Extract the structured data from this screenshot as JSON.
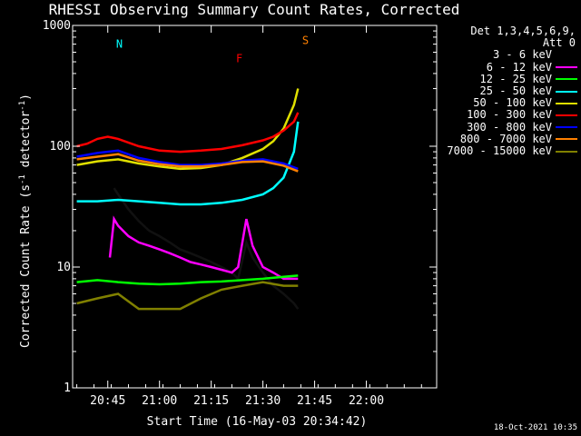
{
  "chart_data": {
    "type": "line",
    "title": "RHESSI Observing Summary Count Rates, Corrected",
    "xlabel": "Start Time (16-May-03 20:34:42)",
    "ylabel": "Corrected Count Rate (s⁻¹ detector⁻¹)",
    "ylabel_parts": {
      "pre": "Corrected Count Rate (s",
      "sup1": "-1",
      "mid": " detector",
      "sup2": "-1",
      "post": ")"
    },
    "y_scale": "log",
    "ylim": [
      1,
      1000
    ],
    "y_ticks": [
      1,
      10,
      100,
      1000
    ],
    "y_tick_labels": [
      "1",
      "10",
      "100",
      "1000"
    ],
    "xlim": [
      20.58,
      22.34
    ],
    "x_ticks": [
      20.75,
      21.0,
      21.25,
      21.5,
      21.75,
      22.0
    ],
    "x_tick_labels": [
      "20:45",
      "21:00",
      "21:15",
      "21:30",
      "21:45",
      "22:00"
    ],
    "legend_header": [
      "Det 1,3,4,5,6,9,",
      "Att 0"
    ],
    "legend_position": "right",
    "series": [
      {
        "name": "3 - 6 keV",
        "color": "#000000",
        "x": [
          20.78,
          20.8,
          20.85,
          20.9,
          20.95,
          21.0,
          21.05,
          21.1,
          21.15,
          21.2,
          21.25,
          21.3,
          21.35,
          21.38,
          21.42,
          21.45,
          21.5,
          21.55,
          21.6,
          21.65,
          21.67
        ],
        "y": [
          45,
          40,
          30,
          24,
          20,
          18,
          16,
          14,
          13,
          12,
          11,
          10,
          9,
          8,
          16,
          12,
          9,
          7,
          6,
          5,
          4.5
        ]
      },
      {
        "name": "6 - 12 keV",
        "color": "#ff00ff",
        "x": [
          20.76,
          20.78,
          20.8,
          20.85,
          20.9,
          20.95,
          21.0,
          21.05,
          21.1,
          21.15,
          21.2,
          21.25,
          21.3,
          21.35,
          21.38,
          21.42,
          21.45,
          21.5,
          21.55,
          21.6,
          21.65,
          21.67
        ],
        "y": [
          12,
          25,
          22,
          18,
          16,
          15,
          14,
          13,
          12,
          11,
          10.5,
          10,
          9.5,
          9,
          10,
          25,
          15,
          10,
          9,
          8,
          8,
          8
        ]
      },
      {
        "name": "12 - 25 keV",
        "color": "#00ff00",
        "x": [
          20.6,
          20.7,
          20.8,
          20.9,
          21.0,
          21.1,
          21.2,
          21.3,
          21.4,
          21.5,
          21.6,
          21.67
        ],
        "y": [
          7.5,
          7.8,
          7.5,
          7.3,
          7.2,
          7.3,
          7.5,
          7.6,
          7.8,
          8.0,
          8.3,
          8.5
        ]
      },
      {
        "name": "25 - 50 keV",
        "color": "#00ffff",
        "x": [
          20.6,
          20.7,
          20.8,
          20.9,
          21.0,
          21.1,
          21.2,
          21.3,
          21.4,
          21.5,
          21.55,
          21.6,
          21.65,
          21.67
        ],
        "y": [
          35,
          35,
          36,
          35,
          34,
          33,
          33,
          34,
          36,
          40,
          45,
          55,
          90,
          160
        ]
      },
      {
        "name": "50 - 100 keV",
        "color": "#e0e000",
        "x": [
          20.6,
          20.7,
          20.8,
          20.9,
          21.0,
          21.1,
          21.2,
          21.3,
          21.4,
          21.5,
          21.55,
          21.6,
          21.65,
          21.67
        ],
        "y": [
          70,
          75,
          78,
          72,
          68,
          65,
          66,
          70,
          80,
          95,
          110,
          140,
          220,
          300
        ]
      },
      {
        "name": "100 - 300 keV",
        "color": "#ff0000",
        "x": [
          20.6,
          20.65,
          20.7,
          20.75,
          20.8,
          20.9,
          21.0,
          21.1,
          21.2,
          21.3,
          21.4,
          21.5,
          21.55,
          21.6,
          21.65,
          21.67
        ],
        "y": [
          100,
          105,
          115,
          120,
          115,
          100,
          92,
          90,
          92,
          95,
          102,
          112,
          120,
          135,
          160,
          190
        ]
      },
      {
        "name": "300 - 800 keV",
        "color": "#0000ff",
        "x": [
          20.6,
          20.7,
          20.8,
          20.9,
          21.0,
          21.1,
          21.2,
          21.3,
          21.4,
          21.5,
          21.6,
          21.67
        ],
        "y": [
          82,
          88,
          92,
          80,
          74,
          70,
          70,
          72,
          76,
          78,
          72,
          65
        ]
      },
      {
        "name": "800 - 7000 keV",
        "color": "#ff8000",
        "x": [
          20.6,
          20.7,
          20.8,
          20.9,
          21.0,
          21.1,
          21.2,
          21.3,
          21.4,
          21.5,
          21.6,
          21.67
        ],
        "y": [
          78,
          82,
          86,
          76,
          71,
          68,
          68,
          70,
          74,
          75,
          69,
          62
        ]
      },
      {
        "name": "7000 - 15000 keV",
        "color": "#808000",
        "x": [
          20.6,
          20.7,
          20.8,
          20.9,
          21.0,
          21.1,
          21.2,
          21.3,
          21.4,
          21.5,
          21.6,
          21.67
        ],
        "y": [
          5,
          5.5,
          6,
          4.5,
          4.5,
          4.5,
          5.5,
          6.5,
          7,
          7.5,
          7,
          7
        ]
      }
    ],
    "annotations": [
      {
        "text": "N",
        "color": "#00ffff",
        "x": 20.79,
        "y": 700
      },
      {
        "text": "F",
        "color": "#ff0000",
        "x": 21.37,
        "y": 530
      },
      {
        "text": "S",
        "color": "#ff8000",
        "x": 21.69,
        "y": 750
      }
    ],
    "footer": "18-Oct-2021 10:35"
  }
}
